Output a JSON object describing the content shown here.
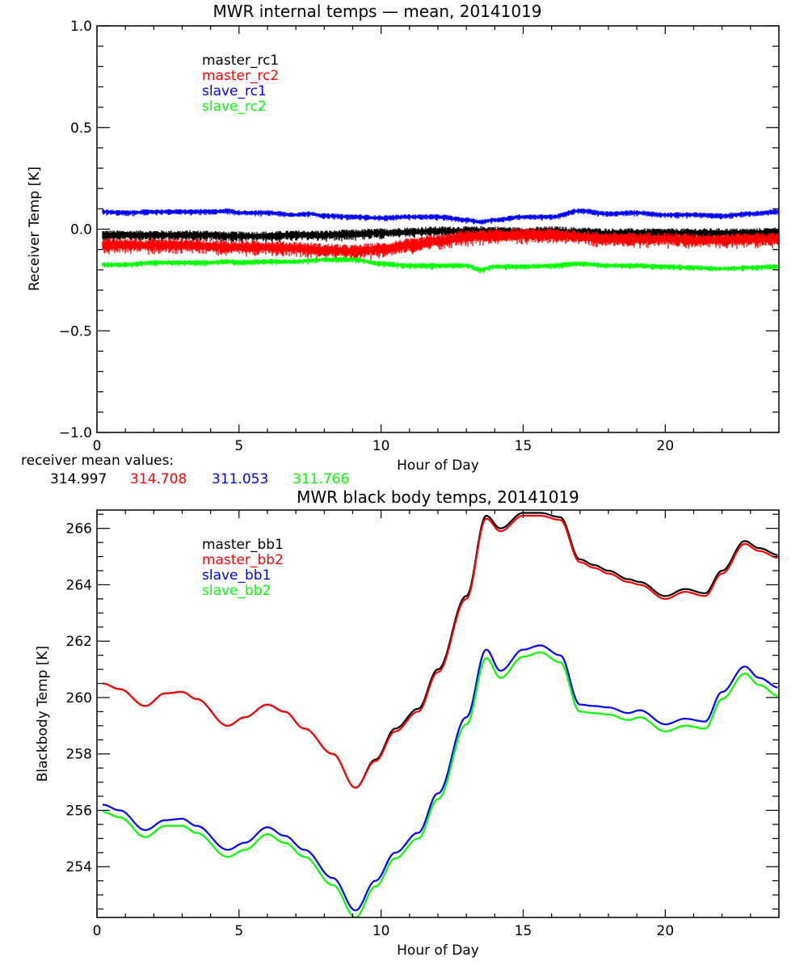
{
  "chart_data": [
    {
      "type": "line",
      "title": "MWR internal temps — mean, 20141019",
      "xlabel": "Hour of Day",
      "ylabel": "Receiver Temp [K]",
      "xlim": [
        0,
        24
      ],
      "ylim": [
        -1.0,
        1.0
      ],
      "xticks": [
        0,
        5,
        10,
        15,
        20
      ],
      "xtick_labels": [
        "0",
        "5",
        "10",
        "15",
        "20"
      ],
      "yticks": [
        -1.0,
        -0.5,
        0.0,
        0.5,
        1.0
      ],
      "ytick_labels": [
        "−1.0",
        "−0.5",
        "0.0",
        "0.5",
        "1.0"
      ],
      "grid": false,
      "legend_position": "top-left",
      "noise_note": "series are noisy bands; values approximate band centers",
      "x": [
        0.2,
        1,
        2,
        3,
        4,
        4.6,
        5,
        6,
        7,
        7.5,
        8,
        9,
        10,
        11,
        12,
        13,
        13.5,
        14,
        15,
        16,
        17,
        18,
        19,
        20,
        21,
        22,
        23,
        24
      ],
      "series": [
        {
          "name": "master_rc1",
          "color": "#000000",
          "band": 0.035,
          "values": [
            -0.03,
            -0.03,
            -0.03,
            -0.03,
            -0.03,
            -0.035,
            -0.035,
            -0.035,
            -0.03,
            -0.03,
            -0.03,
            -0.025,
            -0.02,
            -0.015,
            -0.01,
            -0.01,
            -0.01,
            -0.01,
            -0.015,
            -0.01,
            -0.015,
            -0.02,
            -0.02,
            -0.02,
            -0.02,
            -0.02,
            -0.02,
            -0.015
          ]
        },
        {
          "name": "master_rc2",
          "color": "#ff0000",
          "band": 0.05,
          "values": [
            -0.08,
            -0.08,
            -0.08,
            -0.08,
            -0.085,
            -0.09,
            -0.09,
            -0.09,
            -0.095,
            -0.1,
            -0.105,
            -0.11,
            -0.1,
            -0.08,
            -0.06,
            -0.04,
            -0.035,
            -0.035,
            -0.03,
            -0.03,
            -0.04,
            -0.05,
            -0.05,
            -0.05,
            -0.055,
            -0.055,
            -0.05,
            -0.05
          ]
        },
        {
          "name": "slave_rc1",
          "color": "#0000ff",
          "band": 0.02,
          "values": [
            0.085,
            0.08,
            0.085,
            0.085,
            0.085,
            0.09,
            0.08,
            0.08,
            0.07,
            0.075,
            0.065,
            0.06,
            0.055,
            0.06,
            0.06,
            0.045,
            0.035,
            0.045,
            0.06,
            0.06,
            0.09,
            0.075,
            0.08,
            0.07,
            0.07,
            0.065,
            0.075,
            0.085
          ]
        },
        {
          "name": "slave_rc2",
          "color": "#00ff00",
          "band": 0.02,
          "values": [
            -0.175,
            -0.175,
            -0.165,
            -0.165,
            -0.165,
            -0.16,
            -0.165,
            -0.16,
            -0.16,
            -0.155,
            -0.15,
            -0.15,
            -0.17,
            -0.18,
            -0.18,
            -0.18,
            -0.2,
            -0.185,
            -0.185,
            -0.18,
            -0.17,
            -0.18,
            -0.18,
            -0.185,
            -0.19,
            -0.195,
            -0.19,
            -0.185
          ]
        }
      ],
      "footer": {
        "label": "receiver mean values:",
        "values": [
          {
            "text": "314.997",
            "color": "#000000"
          },
          {
            "text": "314.708",
            "color": "#ff0000"
          },
          {
            "text": "311.053",
            "color": "#0000ff"
          },
          {
            "text": "311.766",
            "color": "#00ff00"
          }
        ]
      }
    },
    {
      "type": "line",
      "title": "MWR black body temps, 20141019",
      "xlabel": "Hour of Day",
      "ylabel": "Blackbody Temp [K]",
      "xlim": [
        0,
        24
      ],
      "ylim": [
        252.2,
        266.65
      ],
      "xticks": [
        0,
        5,
        10,
        15,
        20
      ],
      "xtick_labels": [
        "0",
        "5",
        "10",
        "15",
        "20"
      ],
      "yticks": [
        254,
        256,
        258,
        260,
        262,
        264,
        266
      ],
      "ytick_labels": [
        "254",
        "256",
        "258",
        "260",
        "262",
        "264",
        "266"
      ],
      "grid": false,
      "legend_position": "top-left",
      "x": [
        0.2,
        0.8,
        1.7,
        2.4,
        3.0,
        3.5,
        4.6,
        5.2,
        6.0,
        6.6,
        7.3,
        8.3,
        9.1,
        9.8,
        10.5,
        11.3,
        12.0,
        13.0,
        13.7,
        14.2,
        15.0,
        15.6,
        16.3,
        17.0,
        17.5,
        18.0,
        18.7,
        19.1,
        20.0,
        20.7,
        21.4,
        22.0,
        22.8,
        23.3,
        24.0
      ],
      "series": [
        {
          "name": "master_bb1",
          "color": "#000000",
          "values": [
            260.5,
            260.3,
            259.7,
            260.15,
            260.2,
            259.95,
            259.0,
            259.3,
            259.75,
            259.5,
            258.9,
            258.0,
            256.8,
            257.8,
            258.9,
            259.6,
            261.0,
            263.6,
            266.45,
            266.0,
            266.55,
            266.55,
            266.4,
            264.9,
            264.7,
            264.5,
            264.2,
            264.1,
            263.6,
            263.85,
            263.7,
            264.5,
            265.55,
            265.3,
            265.05
          ]
        },
        {
          "name": "master_bb2",
          "color": "#ff0000",
          "values": [
            260.5,
            260.3,
            259.7,
            260.15,
            260.2,
            259.95,
            259.0,
            259.3,
            259.75,
            259.5,
            258.9,
            258.0,
            256.8,
            257.75,
            258.8,
            259.5,
            260.9,
            263.5,
            266.35,
            265.9,
            266.45,
            266.45,
            266.3,
            264.8,
            264.6,
            264.4,
            264.1,
            264.0,
            263.5,
            263.75,
            263.6,
            264.4,
            265.45,
            265.2,
            264.95
          ]
        },
        {
          "name": "slave_bb1",
          "color": "#0000ff",
          "values": [
            256.2,
            256.0,
            255.3,
            255.65,
            255.7,
            255.45,
            254.6,
            254.85,
            255.4,
            255.1,
            254.6,
            253.6,
            252.45,
            253.5,
            254.5,
            255.2,
            256.6,
            259.3,
            261.7,
            260.95,
            261.7,
            261.85,
            261.5,
            259.75,
            259.7,
            259.65,
            259.45,
            259.55,
            259.05,
            259.25,
            259.15,
            260.2,
            261.1,
            260.7,
            260.35
          ]
        },
        {
          "name": "slave_bb2",
          "color": "#00ff00",
          "values": [
            255.95,
            255.75,
            255.05,
            255.45,
            255.45,
            255.2,
            254.35,
            254.6,
            255.15,
            254.85,
            254.35,
            253.35,
            252.2,
            253.3,
            254.3,
            255.0,
            256.4,
            259.05,
            261.4,
            260.7,
            261.45,
            261.6,
            261.25,
            259.5,
            259.45,
            259.4,
            259.2,
            259.3,
            258.8,
            259.0,
            258.9,
            259.95,
            260.85,
            260.45,
            260.05
          ]
        }
      ]
    }
  ]
}
